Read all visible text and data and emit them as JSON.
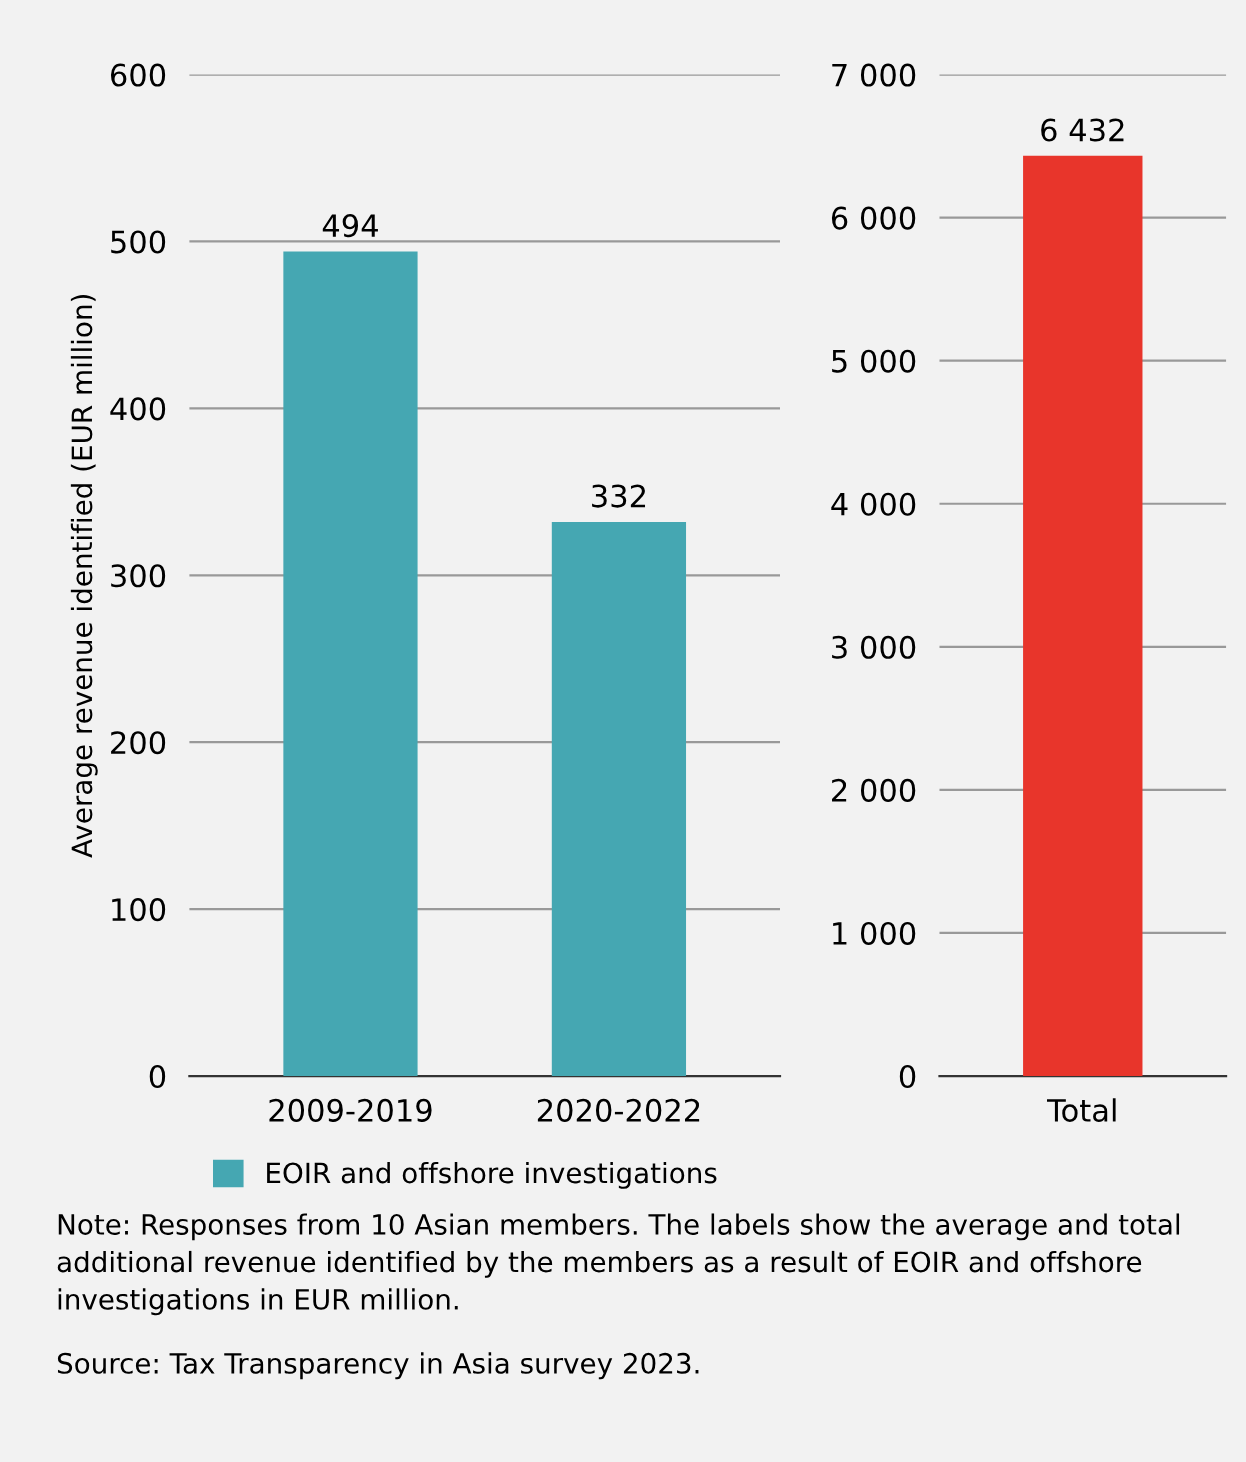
{
  "chart_data": [
    {
      "type": "bar",
      "categories": [
        "2009-2019",
        "2020-2022"
      ],
      "series": [
        {
          "name": "EOIR and offshore investigations",
          "color": "#45a7b2",
          "values": [
            494,
            332
          ]
        }
      ],
      "ylabel": "Average revenue identified (EUR million)",
      "ylim": [
        0,
        600
      ],
      "yticks": [
        0,
        100,
        200,
        300,
        400,
        500,
        600
      ],
      "grid": "y",
      "legend": "bottom",
      "data_labels": true,
      "annotations": [
        "Note: Responses from 10 Asian members. The labels show the average and total additional revenue identified by the members as a result of EOIR and offshore investigations in EUR million.",
        "Source: Tax Transparency in Asia survey 2023."
      ]
    },
    {
      "type": "bar",
      "categories": [
        "Total"
      ],
      "series": [
        {
          "color": "#e8352b",
          "values": [
            6432
          ]
        }
      ],
      "ylim": [
        0,
        7000
      ],
      "yticks": [
        0,
        {
          "value": 1000,
          "label": "1 000"
        },
        {
          "value": 2000,
          "label": "2 000"
        },
        {
          "value": 3000,
          "label": "3 000"
        },
        {
          "value": 4000,
          "label": "4 000"
        },
        {
          "value": 5000,
          "label": "5 000"
        },
        {
          "value": 6000,
          "label": "6 000"
        },
        {
          "value": 7000,
          "label": "7 000"
        }
      ],
      "grid": "y",
      "value_labels": [
        "6 432"
      ]
    }
  ]
}
